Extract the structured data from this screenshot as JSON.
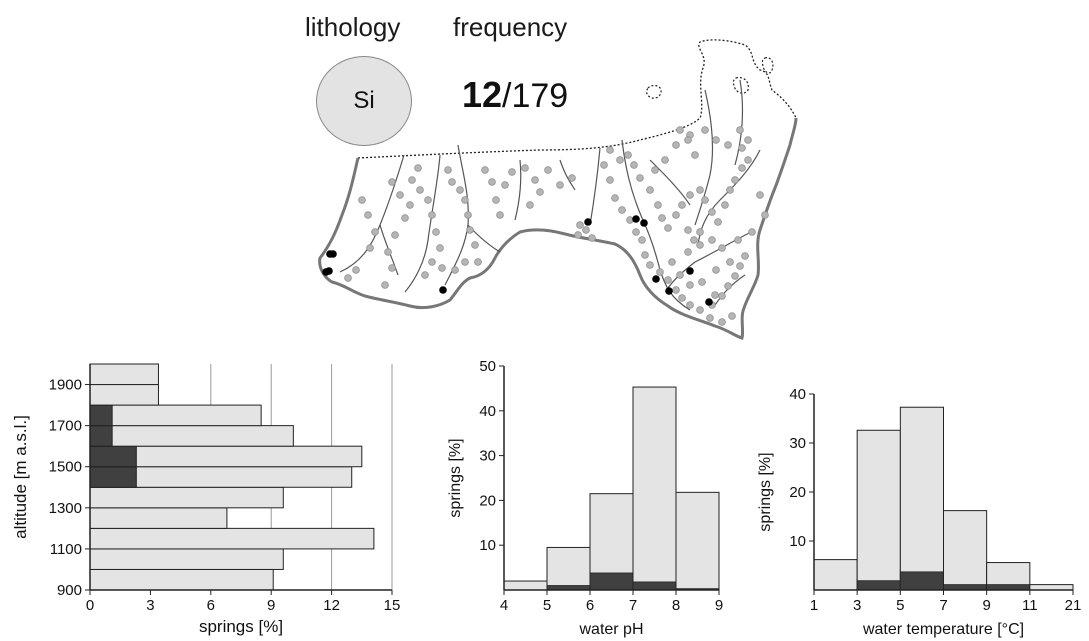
{
  "header": {
    "lithology_label": "lithology",
    "frequency_label": "frequency",
    "lithology_code": "Si",
    "frequency_count": "12",
    "frequency_total": "/179"
  },
  "colors": {
    "bar_light": "#e4e4e4",
    "bar_dark": "#404040",
    "outline": "#222222",
    "spring_gray": "#b5b5b5",
    "spring_selected": "#000000"
  },
  "map": {
    "type": "spring location map",
    "selected_spring_count": 12
  },
  "chart_data": [
    {
      "type": "bar",
      "orientation": "horizontal",
      "xlabel": "springs [%]",
      "ylabel": "altitude [m a.s.l.]",
      "xlim": [
        0,
        15
      ],
      "xticks": [
        0,
        3,
        6,
        9,
        12,
        15
      ],
      "ylim": [
        900,
        2000
      ],
      "yticks": [
        900,
        1100,
        1300,
        1500,
        1700,
        1900
      ],
      "grid": "vertical",
      "bin_width": 100,
      "bins": [
        {
          "from": 900,
          "to": 1000,
          "total": 9.1,
          "selected": 0
        },
        {
          "from": 1000,
          "to": 1100,
          "total": 9.6,
          "selected": 0
        },
        {
          "from": 1100,
          "to": 1200,
          "total": 14.1,
          "selected": 0
        },
        {
          "from": 1200,
          "to": 1300,
          "total": 6.8,
          "selected": 0
        },
        {
          "from": 1300,
          "to": 1400,
          "total": 9.6,
          "selected": 0
        },
        {
          "from": 1400,
          "to": 1500,
          "total": 13.0,
          "selected": 2.3
        },
        {
          "from": 1500,
          "to": 1600,
          "total": 13.5,
          "selected": 2.3
        },
        {
          "from": 1600,
          "to": 1700,
          "total": 10.1,
          "selected": 1.1
        },
        {
          "from": 1700,
          "to": 1800,
          "total": 8.5,
          "selected": 1.1
        },
        {
          "from": 1800,
          "to": 1900,
          "total": 3.4,
          "selected": 0
        },
        {
          "from": 1900,
          "to": 2000,
          "total": 3.4,
          "selected": 0
        }
      ]
    },
    {
      "type": "bar",
      "xlabel": "water pH",
      "ylabel": "springs [%]",
      "xlim": [
        4,
        9
      ],
      "xticks": [
        "4",
        "5",
        "6",
        "7",
        "8",
        "9"
      ],
      "ylim": [
        0,
        50
      ],
      "yticks": [
        10,
        20,
        30,
        40,
        50
      ],
      "categories": [
        "4-5",
        "5-6",
        "6-7",
        "7-8",
        "8-9"
      ],
      "series": [
        {
          "name": "",
          "role": "all springs",
          "values": [
            2.0,
            9.5,
            21.5,
            45.3,
            21.8
          ]
        },
        {
          "name": "",
          "role": "selected lithology",
          "values": [
            0,
            1.0,
            3.8,
            1.8,
            0.3
          ]
        }
      ]
    },
    {
      "type": "bar",
      "xlabel": "water temperature [°C]",
      "ylabel": "springs [%]",
      "xticks": [
        "1",
        "3",
        "5",
        "7",
        "9",
        "11",
        "21"
      ],
      "ylim": [
        0,
        40
      ],
      "yticks": [
        10,
        20,
        30,
        40
      ],
      "categories": [
        "1-3",
        "3-5",
        "5-7",
        "7-9",
        "9-11",
        "11-21"
      ],
      "series": [
        {
          "name": "",
          "role": "all springs",
          "values": [
            6.2,
            32.6,
            37.3,
            16.2,
            5.6,
            1.1
          ]
        },
        {
          "name": "",
          "role": "selected lithology",
          "values": [
            0,
            1.9,
            3.7,
            1.1,
            1.1,
            0
          ]
        }
      ]
    }
  ]
}
